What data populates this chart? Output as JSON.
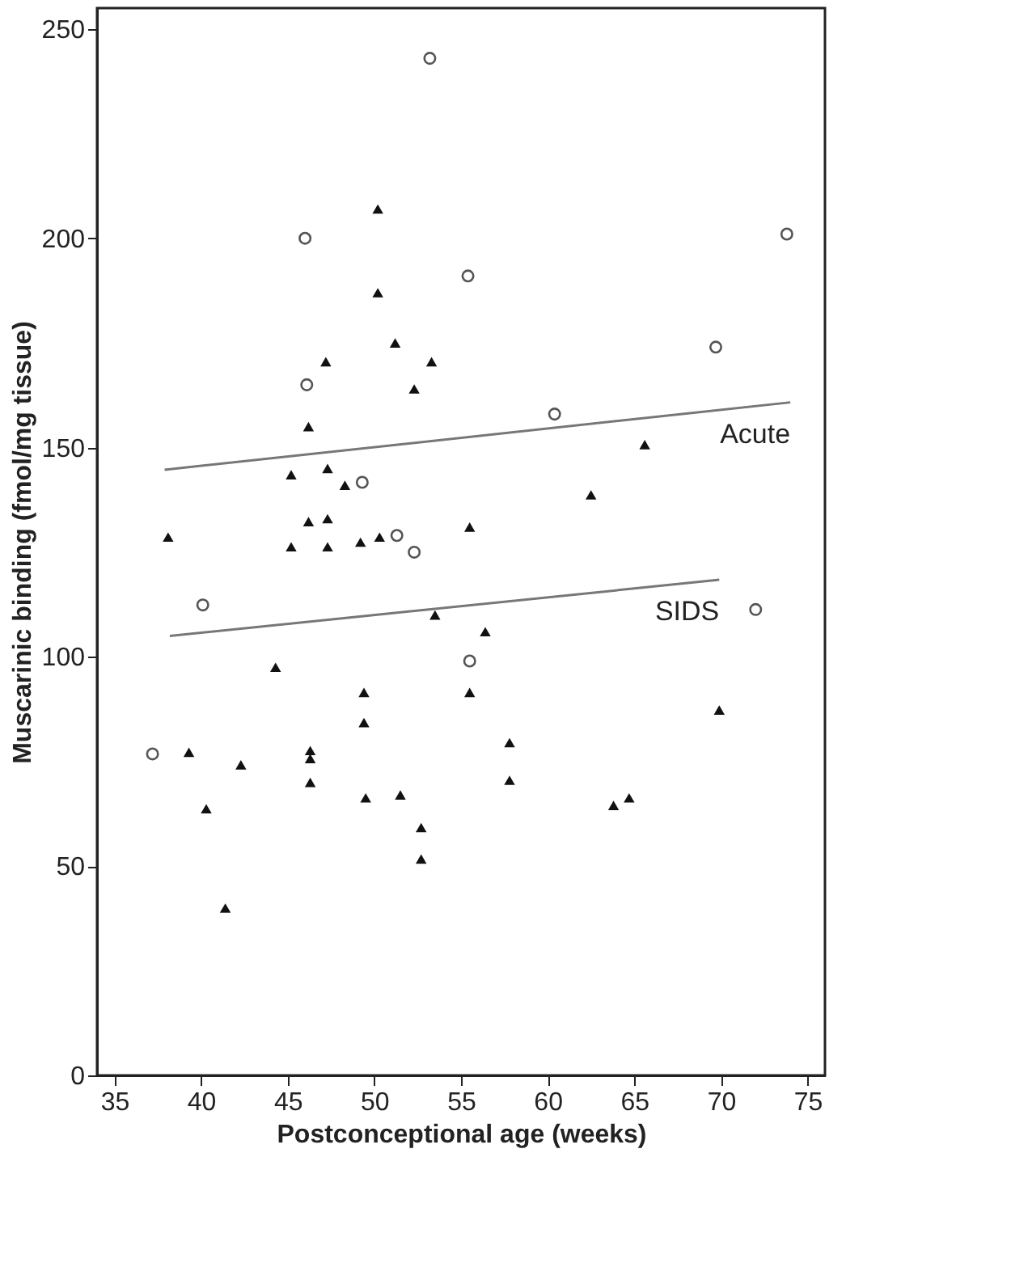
{
  "chart_data": {
    "type": "scatter",
    "xlabel": "Postconceptional age (weeks)",
    "ylabel": "Muscarinic binding (fmol/mg tissue)",
    "xlim": [
      34,
      76
    ],
    "ylim": [
      0,
      255
    ],
    "xticks": [
      35,
      40,
      45,
      50,
      55,
      60,
      65,
      70,
      75
    ],
    "yticks": [
      0,
      50,
      100,
      150,
      200,
      250
    ],
    "grid": false,
    "series": [
      {
        "marker": "circle",
        "color": "#555555",
        "x": [
          53.2,
          46.0,
          55.4,
          46.1,
          49.3,
          73.8,
          69.7,
          60.4,
          51.3,
          52.3,
          40.1,
          55.5,
          37.2,
          72.0
        ],
        "values": [
          243,
          200,
          191,
          165,
          141.7,
          201,
          174,
          158,
          129,
          125,
          112.4,
          99,
          76.8,
          111.3
        ]
      },
      {
        "marker": "triangle",
        "color": "#111111",
        "x": [
          50.2,
          50.2,
          51.2,
          47.2,
          53.3,
          52.3,
          46.2,
          45.2,
          47.3,
          48.3,
          65.6,
          62.5,
          38.1,
          46.2,
          47.3,
          45.2,
          47.3,
          49.2,
          50.3,
          55.5,
          53.5,
          56.4,
          44.3,
          49.4,
          55.5,
          49.4,
          39.3,
          42.3,
          46.3,
          46.3,
          46.3,
          40.3,
          49.5,
          51.5,
          52.7,
          52.7,
          41.4,
          69.9,
          57.8,
          57.8,
          63.8,
          64.7
        ],
        "values": [
          207,
          187,
          175,
          170.5,
          170.5,
          164,
          155,
          143.5,
          145,
          141,
          150.7,
          138.7,
          128.6,
          132.3,
          133,
          126.3,
          126.3,
          127.4,
          128.6,
          131,
          110,
          106,
          97.5,
          91.5,
          91.5,
          84.3,
          77.2,
          74.2,
          77.6,
          75.7,
          70,
          63.7,
          66.3,
          67,
          59.2,
          51.7,
          40,
          87.3,
          79.5,
          70.5,
          64.5,
          66.3
        ]
      },
      {
        "type": "line",
        "name": "Acute",
        "color": "#777777",
        "x": [
          37.9,
          74.0
        ],
        "values": [
          144.7,
          160.8
        ]
      },
      {
        "type": "line",
        "name": "SIDS",
        "color": "#777777",
        "x": [
          38.2,
          69.9
        ],
        "values": [
          105,
          118.4
        ]
      }
    ]
  }
}
